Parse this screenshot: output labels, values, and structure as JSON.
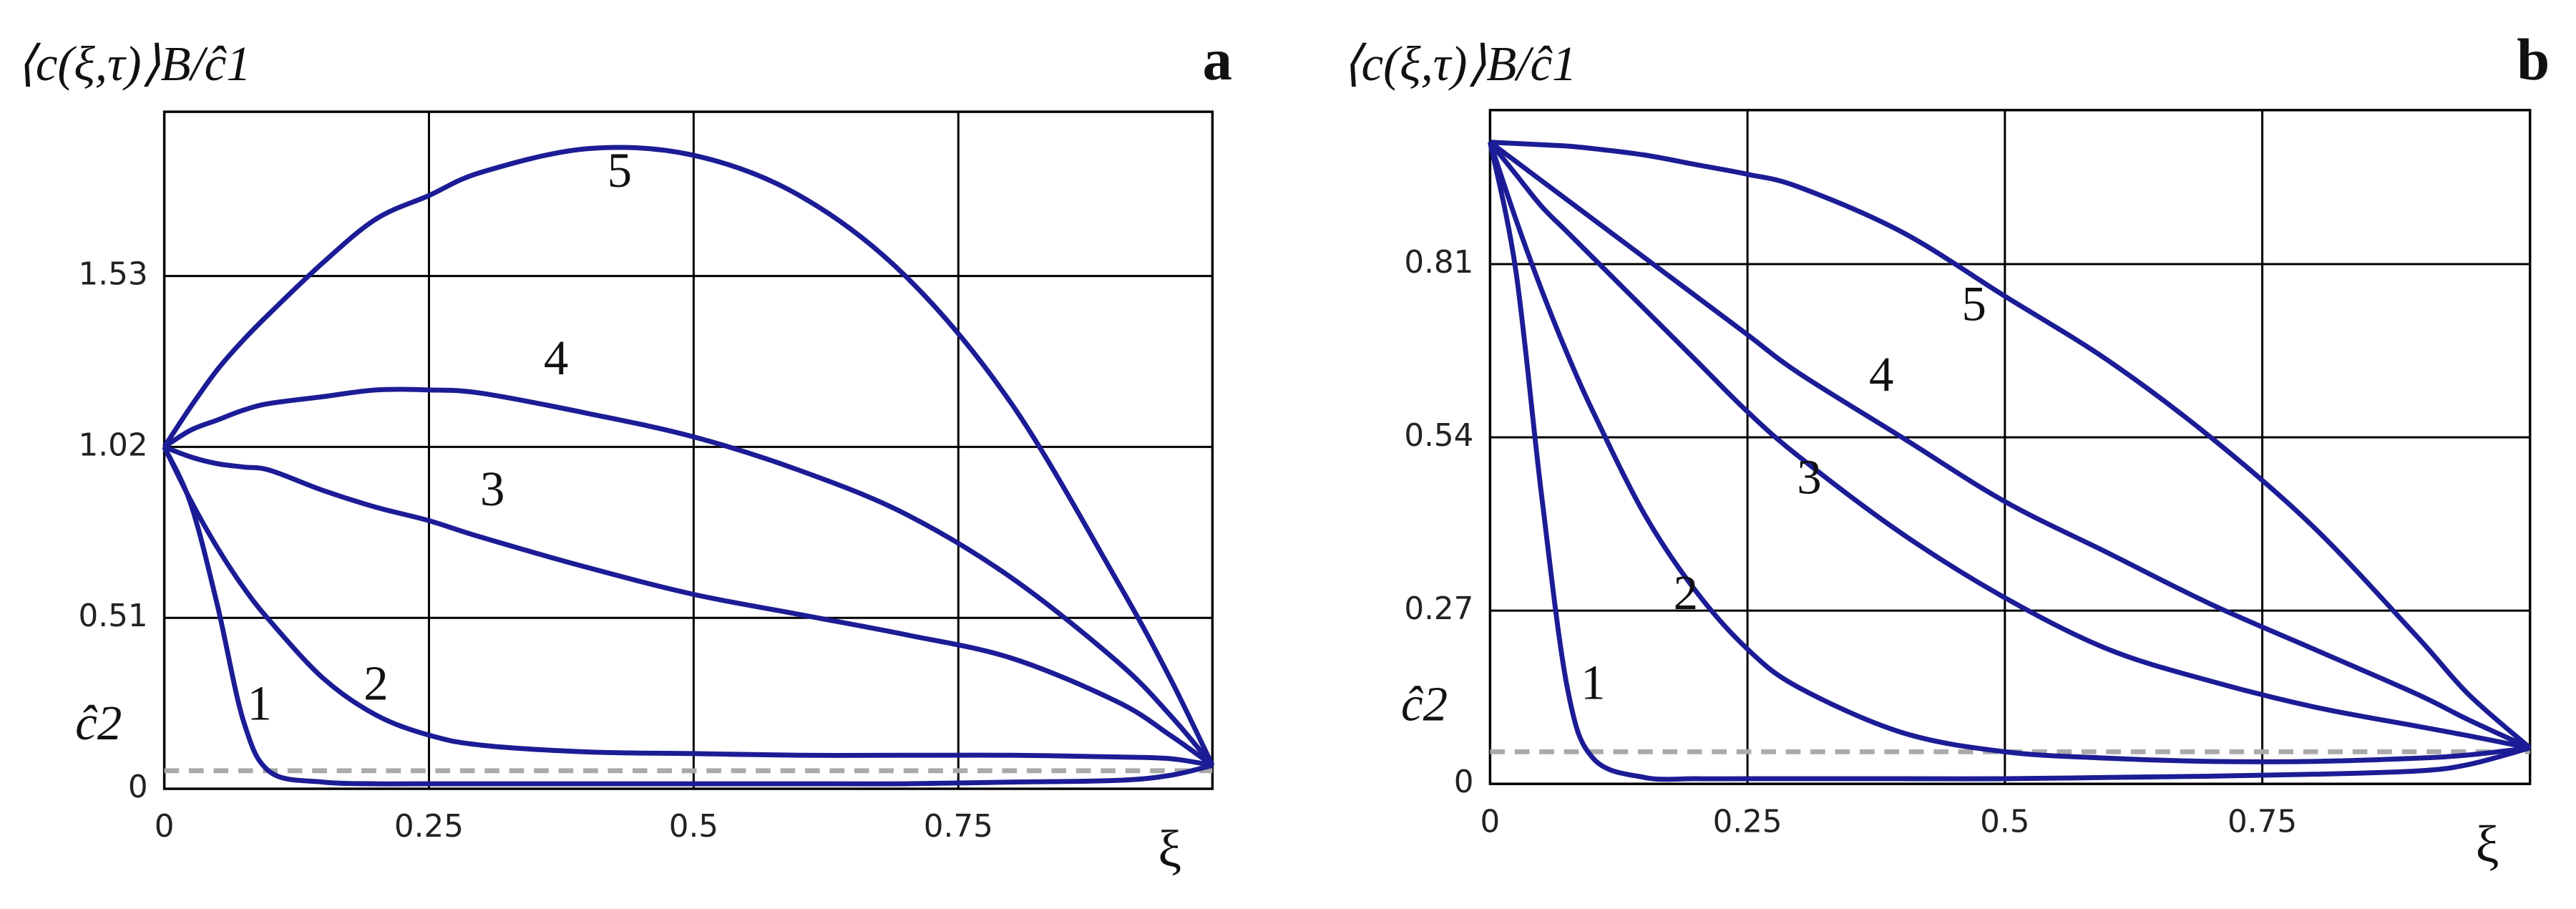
{
  "chart_data": [
    {
      "type": "line",
      "panel": "a",
      "y_label": "⟨c(ξ,τ)⟩B/ĉ1",
      "x_label": "ξ",
      "x": [
        0,
        0.025,
        0.05,
        0.075,
        0.1,
        0.15,
        0.2,
        0.25,
        0.3,
        0.4,
        0.5,
        0.6,
        0.7,
        0.8,
        0.9,
        0.95,
        0.99
      ],
      "series": [
        {
          "name": "1",
          "color": "#1c1c96",
          "values": [
            1.02,
            0.85,
            0.55,
            0.2,
            0.05,
            0.02,
            0.015,
            0.015,
            0.015,
            0.015,
            0.015,
            0.015,
            0.015,
            0.02,
            0.025,
            0.04,
            0.07
          ]
        },
        {
          "name": "2",
          "color": "#1c1c96",
          "values": [
            1.02,
            0.86,
            0.72,
            0.6,
            0.5,
            0.33,
            0.22,
            0.16,
            0.13,
            0.11,
            0.105,
            0.1,
            0.1,
            0.1,
            0.095,
            0.09,
            0.07
          ]
        },
        {
          "name": "3",
          "color": "#1c1c96",
          "values": [
            1.02,
            0.99,
            0.97,
            0.96,
            0.95,
            0.89,
            0.84,
            0.8,
            0.75,
            0.66,
            0.58,
            0.52,
            0.46,
            0.39,
            0.26,
            0.16,
            0.07
          ]
        },
        {
          "name": "4",
          "color": "#1c1c96",
          "values": [
            1.02,
            1.07,
            1.1,
            1.13,
            1.15,
            1.17,
            1.19,
            1.19,
            1.18,
            1.12,
            1.05,
            0.95,
            0.82,
            0.63,
            0.38,
            0.22,
            0.07
          ]
        },
        {
          "name": "5",
          "color": "#1c1c96",
          "values": [
            1.02,
            1.14,
            1.25,
            1.34,
            1.42,
            1.57,
            1.7,
            1.77,
            1.84,
            1.91,
            1.89,
            1.77,
            1.53,
            1.15,
            0.62,
            0.33,
            0.07
          ]
        }
      ],
      "reference_line": {
        "label": "ĉ2",
        "value": 0.054,
        "color": "#aaaaaa",
        "style": "dashed"
      },
      "xlim": [
        0,
        0.99
      ],
      "ylim": [
        0,
        2.02
      ],
      "xticks": [
        0,
        0.25,
        0.5,
        0.75
      ],
      "yticks": [
        0,
        0.51,
        1.02,
        1.53
      ],
      "grid": true
    },
    {
      "type": "line",
      "panel": "b",
      "y_label": "⟨c(ξ,τ)⟩B/ĉ1",
      "x_label": "ξ",
      "x": [
        0,
        0.025,
        0.05,
        0.075,
        0.1,
        0.15,
        0.2,
        0.25,
        0.3,
        0.4,
        0.5,
        0.6,
        0.7,
        0.8,
        0.9,
        0.95,
        1.01
      ],
      "series": [
        {
          "name": "1",
          "color": "#1c1c96",
          "values": [
            1.0,
            0.8,
            0.45,
            0.15,
            0.04,
            0.01,
            0.008,
            0.008,
            0.008,
            0.008,
            0.008,
            0.01,
            0.012,
            0.015,
            0.02,
            0.03,
            0.056
          ]
        },
        {
          "name": "2",
          "color": "#1c1c96",
          "values": [
            1.0,
            0.88,
            0.77,
            0.67,
            0.58,
            0.42,
            0.3,
            0.21,
            0.15,
            0.08,
            0.05,
            0.04,
            0.035,
            0.035,
            0.04,
            0.045,
            0.056
          ]
        },
        {
          "name": "3",
          "color": "#1c1c96",
          "values": [
            1.0,
            0.95,
            0.9,
            0.86,
            0.82,
            0.74,
            0.66,
            0.58,
            0.51,
            0.39,
            0.29,
            0.21,
            0.16,
            0.12,
            0.09,
            0.075,
            0.056
          ]
        },
        {
          "name": "4",
          "color": "#1c1c96",
          "values": [
            1.0,
            0.97,
            0.94,
            0.91,
            0.88,
            0.82,
            0.76,
            0.7,
            0.64,
            0.54,
            0.44,
            0.36,
            0.28,
            0.21,
            0.14,
            0.1,
            0.056
          ]
        },
        {
          "name": "5",
          "color": "#1c1c96",
          "values": [
            1.0,
            0.998,
            0.996,
            0.994,
            0.99,
            0.98,
            0.965,
            0.95,
            0.93,
            0.86,
            0.76,
            0.66,
            0.54,
            0.4,
            0.23,
            0.14,
            0.056
          ]
        }
      ],
      "reference_line": {
        "label": "ĉ2",
        "value": 0.05,
        "color": "#aaaaaa",
        "style": "dashed"
      },
      "xlim": [
        0,
        1.01
      ],
      "ylim": [
        0,
        1.05
      ],
      "xticks": [
        0,
        0.25,
        0.5,
        0.75
      ],
      "yticks": [
        0,
        0.27,
        0.54,
        0.81
      ],
      "grid": true
    }
  ]
}
